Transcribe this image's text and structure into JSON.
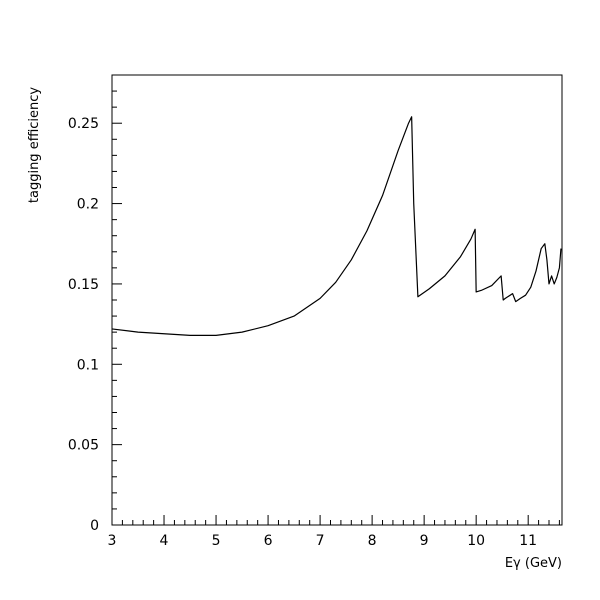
{
  "chart_data": {
    "type": "line",
    "title": "",
    "xlabel": "Eγ (GeV)",
    "ylabel": "tagging efficiency",
    "xlim": [
      3,
      11.65
    ],
    "ylim": [
      0,
      0.28
    ],
    "grid": false,
    "legend": "none",
    "x_ticks": [
      3,
      4,
      5,
      6,
      7,
      8,
      9,
      10,
      11
    ],
    "x_tick_labels": [
      "3",
      "4",
      "5",
      "6",
      "7",
      "8",
      "9",
      "10",
      "11"
    ],
    "y_ticks": [
      0,
      0.05,
      0.1,
      0.15,
      0.2,
      0.25
    ],
    "y_tick_labels": [
      "0",
      "0.05",
      "0.1",
      "0.15",
      "0.2",
      "0.25"
    ],
    "series": [
      {
        "color": "#000000",
        "x": [
          3.0,
          3.5,
          4.0,
          4.5,
          5.0,
          5.5,
          6.0,
          6.5,
          7.0,
          7.3,
          7.6,
          7.9,
          8.2,
          8.5,
          8.7,
          8.76,
          8.8,
          8.88,
          9.1,
          9.4,
          9.7,
          9.9,
          9.98,
          10.0,
          10.1,
          10.3,
          10.48,
          10.52,
          10.56,
          10.7,
          10.76,
          10.85,
          10.95,
          11.05,
          11.15,
          11.25,
          11.32,
          11.36,
          11.4,
          11.45,
          11.5,
          11.55,
          11.6,
          11.63
        ],
        "y": [
          0.122,
          0.12,
          0.119,
          0.118,
          0.118,
          0.12,
          0.124,
          0.13,
          0.141,
          0.151,
          0.165,
          0.183,
          0.205,
          0.233,
          0.25,
          0.254,
          0.2,
          0.142,
          0.147,
          0.155,
          0.167,
          0.178,
          0.184,
          0.145,
          0.146,
          0.149,
          0.155,
          0.14,
          0.141,
          0.144,
          0.139,
          0.141,
          0.143,
          0.148,
          0.158,
          0.172,
          0.175,
          0.165,
          0.15,
          0.155,
          0.15,
          0.154,
          0.16,
          0.172
        ]
      }
    ]
  }
}
